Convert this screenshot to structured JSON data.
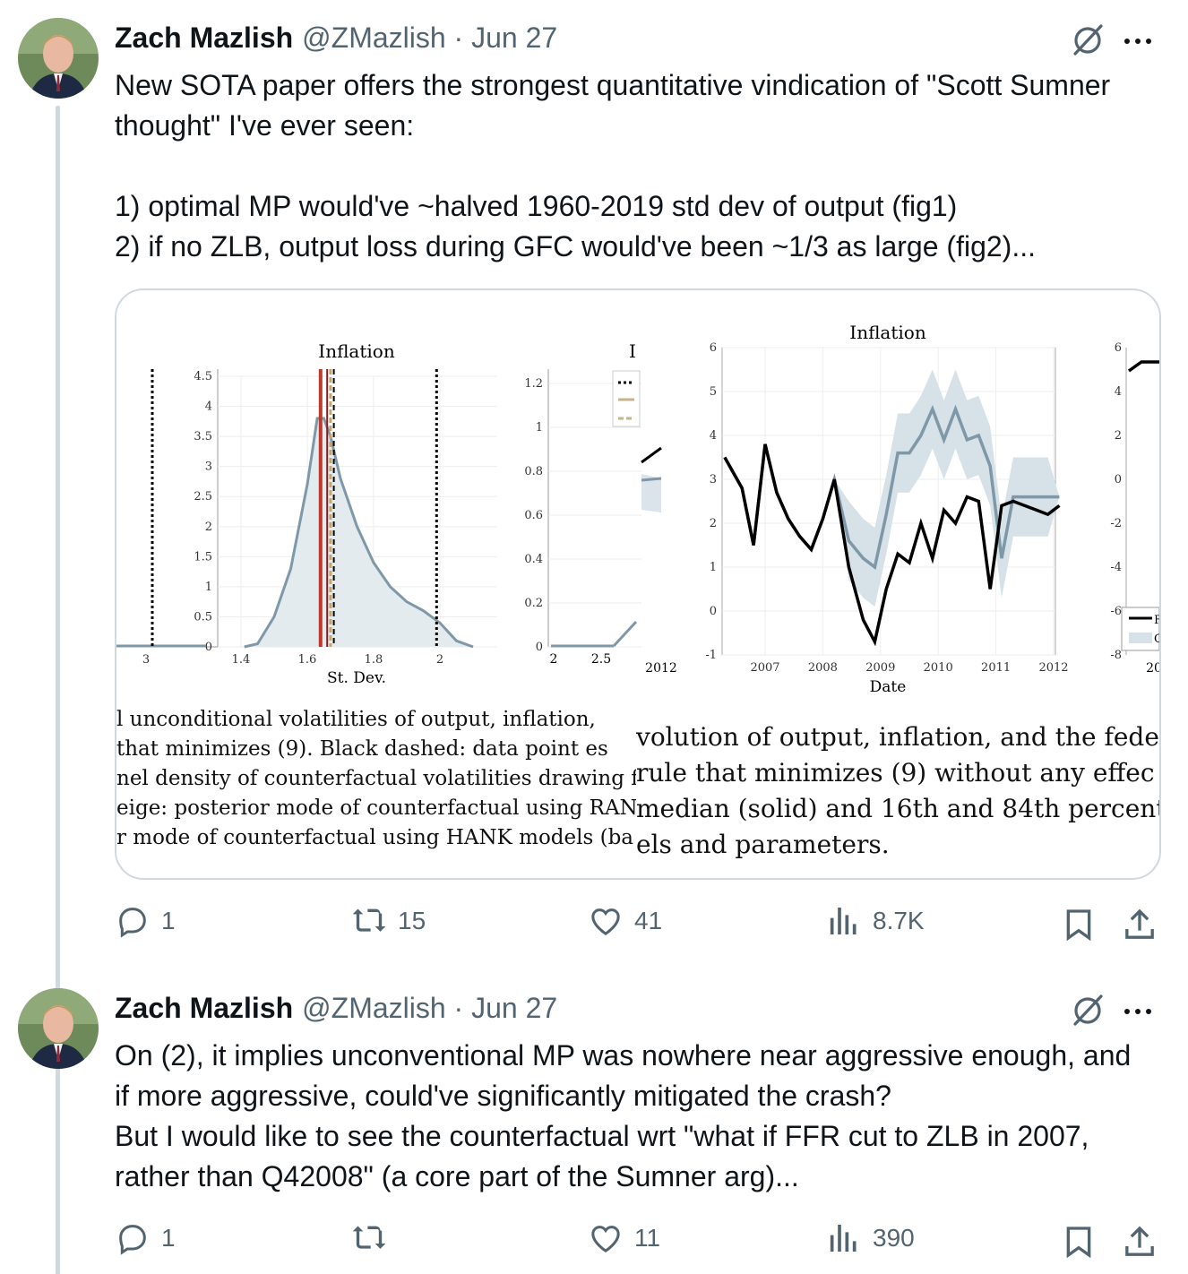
{
  "tweets": [
    {
      "author": "Zach Mazlish",
      "handle_date": "@ZMazlish · Jun 27",
      "text": "New SOTA paper offers the strongest quantitative vindication of \"Scott Sumner thought\" I've ever seen:\n\n1) optimal MP would've ~halved 1960-2019 std dev of output (fig1)\n2) if no ZLB, output loss during GFC would've been ~1/3 as large (fig2)...",
      "replies": "1",
      "reposts": "15",
      "likes": "41",
      "views": "8.7K"
    },
    {
      "author": "Zach Mazlish",
      "handle_date": "@ZMazlish · Jun 27",
      "text": "On (2), it implies unconventional MP was nowhere near aggressive enough, and if more aggressive, could've significantly mitigated the crash?\nBut I would like to see the counterfactual wrt \"what if FFR cut to ZLB in 2007, rather than Q42008\" (a core part of the Sumner arg)...",
      "replies": "1",
      "reposts": "",
      "likes": "11",
      "views": "390"
    }
  ],
  "icons": [
    "avatar-photo",
    "grok-icon",
    "more-icon",
    "reply-icon",
    "repost-icon",
    "like-icon",
    "views-icon",
    "bookmark-icon",
    "share-icon"
  ],
  "chart_data": [
    {
      "type": "area",
      "title": "Inflation",
      "xlabel": "St. Dev.",
      "xticks": [
        "3",
        "1.4",
        "1.6",
        "1.8",
        "2"
      ],
      "yticks": [
        "0",
        "0.5",
        "1",
        "1.5",
        "2",
        "2.5",
        "3",
        "3.5",
        "4",
        "4.5"
      ],
      "x": [
        1.41,
        1.45,
        1.5,
        1.55,
        1.6,
        1.63,
        1.65,
        1.67,
        1.7,
        1.75,
        1.8,
        1.85,
        1.9,
        1.95,
        2.0,
        2.05,
        2.1
      ],
      "y": [
        0,
        0.05,
        0.5,
        1.3,
        2.7,
        3.8,
        3.8,
        3.5,
        2.8,
        2.0,
        1.4,
        1.0,
        0.75,
        0.6,
        0.4,
        0.1,
        0
      ],
      "vlines": [
        1.64,
        1.66,
        1.67,
        1.68,
        1.99
      ],
      "ylim": [
        0,
        4.5
      ]
    },
    {
      "type": "line",
      "title": "I",
      "xticks": [
        "2",
        "2.5",
        "2012"
      ],
      "yticks": [
        "0",
        "0.2",
        "0.4",
        "0.6",
        "0.8",
        "1",
        "1.2"
      ],
      "ylim": [
        0,
        1.25
      ]
    },
    {
      "type": "line",
      "title": "Inflation",
      "xlabel": "Date",
      "xticks": [
        "2007",
        "2008",
        "2009",
        "2010",
        "2011",
        "2012"
      ],
      "yticks": [
        "-1",
        "0",
        "1",
        "2",
        "3",
        "4",
        "5",
        "6"
      ],
      "ylim": [
        -1,
        6
      ],
      "x": [
        2006.3,
        2006.6,
        2006.8,
        2007.0,
        2007.2,
        2007.4,
        2007.6,
        2007.8,
        2008.0,
        2008.2,
        2008.45,
        2008.7,
        2008.9,
        2009.1,
        2009.3,
        2009.5,
        2009.7,
        2009.9,
        2010.1,
        2010.3,
        2010.5,
        2010.7,
        2010.9,
        2011.1,
        2011.3,
        2011.5,
        2011.7,
        2011.9,
        2012.1
      ],
      "series": [
        {
          "values": [
            3.5,
            2.8,
            1.5,
            3.8,
            2.7,
            2.1,
            1.7,
            1.4,
            2.1,
            3.0,
            1.0,
            -0.2,
            -0.7,
            0.5,
            1.3,
            1.1,
            2.0,
            1.2,
            2.3,
            2.0,
            2.6,
            2.5,
            0.5,
            2.4,
            2.5,
            2.4,
            2.3,
            2.2,
            2.4
          ]
        },
        {
          "name": "median",
          "values": [
            3.5,
            2.8,
            1.5,
            3.8,
            2.7,
            2.1,
            1.7,
            1.4,
            2.1,
            3.0,
            1.6,
            1.2,
            1.0,
            2.2,
            3.6,
            3.6,
            4.0,
            4.6,
            3.9,
            4.6,
            3.9,
            4.0,
            3.3,
            1.2,
            2.6,
            2.6,
            2.6,
            2.6,
            2.6
          ]
        }
      ]
    },
    {
      "type": "line",
      "yticks": [
        "-8",
        "-6",
        "-4",
        "-2",
        "0",
        "2",
        "4",
        "6"
      ],
      "xticks": [
        "20"
      ],
      "legend": [
        "F",
        "C"
      ],
      "ylim": [
        -8,
        6
      ]
    }
  ],
  "captions": {
    "left": [
      "l unconditional volatilities of output, inflation,",
      " that minimizes (9). Black dashed: data point es",
      "nel density of counterfactual volatilities drawing fr",
      "eige: posterior mode of counterfactual using RANI",
      "r mode of counterfactual using HANK models (ba"
    ],
    "right": [
      "volution of output, inflation, and the fede",
      "rule that minimizes (9) without any effec",
      "median (solid) and 16th and 84th percent",
      "els and parameters."
    ]
  }
}
